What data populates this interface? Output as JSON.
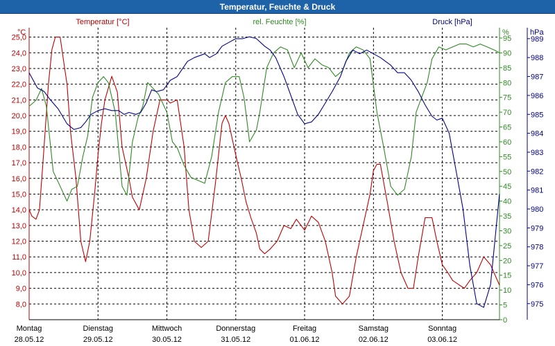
{
  "title": "Temperatur, Feuchte & Druck",
  "colors": {
    "temp": "#c00000",
    "hum": "#2e8b22",
    "press": "#00008b",
    "grid": "#000000"
  },
  "chart_data": {
    "type": "line",
    "title": "Temperatur, Feuchte & Druck",
    "axes": {
      "temp": {
        "label": "Temperatur [°C]",
        "unit": "°C",
        "range": [
          7.0,
          25.6
        ],
        "ticks": [
          "25,0",
          "24,0",
          "23,0",
          "22,0",
          "21,0",
          "20,0",
          "19,0",
          "18,0",
          "17,0",
          "16,0",
          "15,0",
          "14,0",
          "13,0",
          "12,0",
          "11,0",
          "10,0",
          "9,0",
          "8,0"
        ]
      },
      "hum": {
        "label": "rel. Feuchte [%]",
        "unit": "%",
        "range": [
          0,
          98.5
        ],
        "ticks": [
          "95",
          "90",
          "85",
          "80",
          "75",
          "70",
          "65",
          "60",
          "55",
          "50",
          "45",
          "40",
          "35",
          "30",
          "25",
          "20",
          "15",
          "10",
          "5",
          "0"
        ]
      },
      "press": {
        "label": "Druck [hPa]",
        "unit": "hPa",
        "range": [
          974.15,
          989.58
        ],
        "ticks": [
          "989",
          "988",
          "987",
          "986",
          "985",
          "984",
          "983",
          "982",
          "981",
          "980",
          "979",
          "978",
          "977",
          "976",
          "975"
        ]
      }
    },
    "days": [
      {
        "name": "Montag",
        "date": "28.05.12"
      },
      {
        "name": "Dienstag",
        "date": "29.05.12"
      },
      {
        "name": "Mittwoch",
        "date": "30.05.12"
      },
      {
        "name": "Donnerstag",
        "date": "31.05.12"
      },
      {
        "name": "Freitag",
        "date": "01.06.12"
      },
      {
        "name": "Samstag",
        "date": "02.06.12"
      },
      {
        "name": "Sonntag",
        "date": "03.06.12"
      }
    ],
    "series": [
      {
        "name": "Temperatur",
        "axis": "temp",
        "x": [
          0,
          0.04,
          0.1,
          0.15,
          0.2,
          0.28,
          0.33,
          0.38,
          0.45,
          0.5,
          0.55,
          0.6,
          0.68,
          0.75,
          0.82,
          0.88,
          0.95,
          1.0,
          1.05,
          1.1,
          1.2,
          1.28,
          1.35,
          1.45,
          1.5,
          1.6,
          1.7,
          1.8,
          1.9,
          2.0,
          2.05,
          2.15,
          2.25,
          2.32,
          2.4,
          2.5,
          2.6,
          2.7,
          2.8,
          2.85,
          2.9,
          3.0,
          3.08,
          3.15,
          3.22,
          3.3,
          3.35,
          3.42,
          3.5,
          3.6,
          3.7,
          3.8,
          3.88,
          4.0,
          4.1,
          4.2,
          4.3,
          4.4,
          4.45,
          4.55,
          4.65,
          4.75,
          4.85,
          4.95,
          5.0,
          5.05,
          5.1,
          5.2,
          5.3,
          5.4,
          5.5,
          5.58,
          5.65,
          5.75,
          5.85,
          5.92,
          6.0,
          6.08,
          6.15,
          6.25,
          6.32,
          6.4,
          6.5,
          6.6,
          6.7,
          6.83
        ],
        "values": [
          14.0,
          13.6,
          13.4,
          14.0,
          17.0,
          22.0,
          24.2,
          25.0,
          25.0,
          23.5,
          22.0,
          19.0,
          16.0,
          12.0,
          10.7,
          12.0,
          15.0,
          17.5,
          19.5,
          21.0,
          22.5,
          21.5,
          18.0,
          16.0,
          14.8,
          14.0,
          16.0,
          19.0,
          21.0,
          21.0,
          20.8,
          21.0,
          18.0,
          14.0,
          12.0,
          11.6,
          12.0,
          15.5,
          19.5,
          20.0,
          19.5,
          17.5,
          16.0,
          14.5,
          13.5,
          12.5,
          11.5,
          11.2,
          11.5,
          12.0,
          13.0,
          12.8,
          13.4,
          12.7,
          13.6,
          13.2,
          12.0,
          10.0,
          8.5,
          8.0,
          8.5,
          11.0,
          13.0,
          15.0,
          16.5,
          16.9,
          16.9,
          14.5,
          12.0,
          10.0,
          9.0,
          9.0,
          11.0,
          13.5,
          13.5,
          12.0,
          10.5,
          10.0,
          9.5,
          9.2,
          9.0,
          9.5,
          10.0,
          11.0,
          10.5,
          9.2
        ]
      },
      {
        "name": "rel. Feuchte",
        "axis": "hum",
        "x": [
          0,
          0.1,
          0.18,
          0.25,
          0.35,
          0.45,
          0.55,
          0.62,
          0.7,
          0.78,
          0.85,
          0.92,
          1.0,
          1.08,
          1.15,
          1.25,
          1.35,
          1.42,
          1.5,
          1.58,
          1.65,
          1.72,
          1.8,
          1.88,
          2.0,
          2.08,
          2.15,
          2.25,
          2.35,
          2.45,
          2.55,
          2.65,
          2.75,
          2.85,
          2.95,
          3.05,
          3.12,
          3.2,
          3.25,
          3.3,
          3.35,
          3.45,
          3.55,
          3.65,
          3.75,
          3.85,
          3.95,
          4.05,
          4.15,
          4.25,
          4.35,
          4.45,
          4.55,
          4.65,
          4.75,
          4.85,
          4.95,
          5.05,
          5.15,
          5.25,
          5.35,
          5.45,
          5.55,
          5.62,
          5.7,
          5.78,
          5.85,
          5.95,
          6.05,
          6.15,
          6.25,
          6.35,
          6.45,
          6.55,
          6.65,
          6.75,
          6.83
        ],
        "values": [
          72,
          74,
          78,
          72,
          50,
          45,
          40,
          44,
          45,
          55,
          62,
          75,
          80,
          82,
          80,
          70,
          45,
          42,
          60,
          68,
          72,
          80,
          78,
          76,
          70,
          60,
          58,
          52,
          48,
          47,
          46,
          55,
          70,
          80,
          82,
          82,
          75,
          60,
          62,
          64,
          70,
          85,
          90,
          92,
          91,
          85,
          90,
          85,
          88,
          86,
          85,
          82,
          84,
          90,
          92,
          91,
          88,
          70,
          58,
          45,
          42,
          44,
          55,
          70,
          75,
          80,
          88,
          92,
          91,
          92,
          93,
          93,
          92,
          93,
          92,
          91,
          90
        ]
      },
      {
        "name": "Druck",
        "axis": "press",
        "x": [
          0,
          0.12,
          0.22,
          0.3,
          0.42,
          0.55,
          0.65,
          0.75,
          0.82,
          0.9,
          1.0,
          1.1,
          1.2,
          1.3,
          1.38,
          1.45,
          1.55,
          1.62,
          1.7,
          1.78,
          1.85,
          1.95,
          2.05,
          2.15,
          2.3,
          2.4,
          2.55,
          2.62,
          2.72,
          2.8,
          2.9,
          3.0,
          3.1,
          3.2,
          3.3,
          3.42,
          3.5,
          3.58,
          3.7,
          3.8,
          3.9,
          4.0,
          4.1,
          4.2,
          4.3,
          4.4,
          4.52,
          4.6,
          4.7,
          4.8,
          4.9,
          5.0,
          5.1,
          5.25,
          5.35,
          5.45,
          5.55,
          5.65,
          5.75,
          5.85,
          5.92,
          6.0,
          6.1,
          6.2,
          6.3,
          6.4,
          6.5,
          6.6,
          6.7,
          6.83
        ],
        "values": [
          987.2,
          986.4,
          986.2,
          985.8,
          985.3,
          984.5,
          984.2,
          984.3,
          984.6,
          985.0,
          985.2,
          985.3,
          985.2,
          985.2,
          985.0,
          985.1,
          985.0,
          985.1,
          985.6,
          986.3,
          986.2,
          986.3,
          986.8,
          987.0,
          987.8,
          988.0,
          988.2,
          988.0,
          988.2,
          988.6,
          988.8,
          989.0,
          989.0,
          989.1,
          989.0,
          988.6,
          988.4,
          988.0,
          987.0,
          986.0,
          985.0,
          984.5,
          984.6,
          985.0,
          985.6,
          986.2,
          987.0,
          987.8,
          988.4,
          988.2,
          988.4,
          988.2,
          988.0,
          987.6,
          987.2,
          987.2,
          986.8,
          986.2,
          985.5,
          984.9,
          984.7,
          984.8,
          984.0,
          982.0,
          980.0,
          977.0,
          975.0,
          974.8,
          976.0,
          980.8
        ]
      }
    ]
  }
}
